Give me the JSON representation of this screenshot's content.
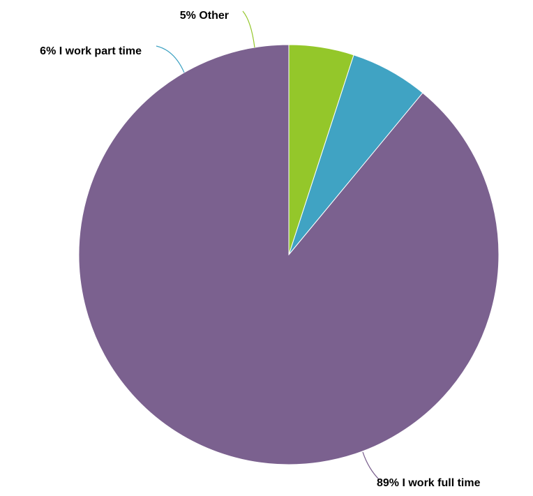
{
  "chart_data": {
    "type": "pie",
    "slices": [
      {
        "label": "89% I work full time",
        "category": "I work full time",
        "value": 89,
        "color": "#7b618f"
      },
      {
        "label": "6% I work part time",
        "category": "I work part time",
        "value": 6,
        "color": "#40a3c3"
      },
      {
        "label": "5% Other",
        "category": "Other",
        "value": 5,
        "color": "#94c72a"
      }
    ],
    "start": "12 o'clock",
    "direction": "clockwise",
    "legend": "none",
    "labels": "outside with leader lines"
  }
}
